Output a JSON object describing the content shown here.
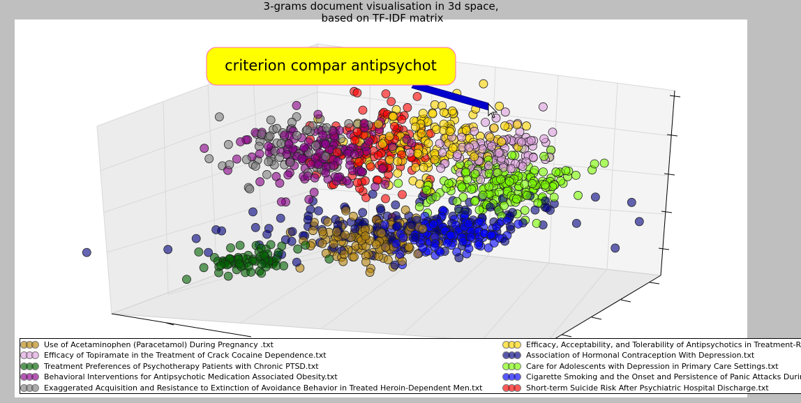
{
  "window": {
    "title_line1": "3-grams document visualisation in 3d space,",
    "title_line2": "based on TF-IDF matrix"
  },
  "annotation": {
    "label": "criterion compar antipsychot",
    "box_color": "#ffff00",
    "arrow_color": "#0000cc"
  },
  "chart_data": {
    "type": "scatter",
    "projection": "3d",
    "title": "3-grams document visualisation in 3d space,\nbased on TF-IDF matrix",
    "xlabel": "",
    "ylabel": "",
    "zlabel": "",
    "x_tick_labels": [],
    "y_tick_labels": [],
    "z_tick_labels": [],
    "xlim": [
      -1,
      1
    ],
    "ylim": [
      -1,
      1
    ],
    "zlim": [
      -1,
      1
    ],
    "grid": true,
    "legend_placement": "bottom",
    "marker": "circle",
    "marker_alpha": 0.6,
    "series": [
      {
        "name": "Use of Acetaminophen (Paracetamol) During Pregnancy .txt",
        "color": "#b8860b",
        "points": 130,
        "center": [
          -0.15,
          -0.55,
          -0.35
        ],
        "spread": [
          0.18,
          0.18,
          0.12
        ]
      },
      {
        "name": "Efficacy of Topiramate in the Treatment of Crack Cocaine Dependence.txt",
        "color": "#dda0dd",
        "points": 110,
        "center": [
          0.62,
          0.2,
          0.25
        ],
        "spread": [
          0.15,
          0.18,
          0.16
        ]
      },
      {
        "name": "Treatment Preferences of Psychotherapy Patients with Chronic PTSD.txt",
        "color": "#006400",
        "points": 70,
        "center": [
          -0.85,
          -0.72,
          -0.4
        ],
        "spread": [
          0.14,
          0.08,
          0.08
        ]
      },
      {
        "name": "Behavioral Interventions for Antipsychotic Medication Associated Obesity.txt",
        "color": "#8b008b",
        "points": 150,
        "center": [
          -0.35,
          0.28,
          0.35
        ],
        "spread": [
          0.2,
          0.18,
          0.2
        ]
      },
      {
        "name": "Exaggerated Acquisition and Resistance to Extinction of Avoidance Behavior in Treated Heroin-Dependent Men.txt",
        "color": "#808080",
        "points": 70,
        "center": [
          -0.48,
          0.35,
          0.4
        ],
        "spread": [
          0.18,
          0.15,
          0.2
        ]
      },
      {
        "name": "Efficacy, Acceptability, and Tolerability of Antipsychotics in Treatment-Resistant Schizophrenia.txt",
        "color": "#ffd700",
        "points": 150,
        "center": [
          0.28,
          0.35,
          0.35
        ],
        "spread": [
          0.2,
          0.2,
          0.25
        ]
      },
      {
        "name": "Association of Hormonal Contraception With Depression.txt",
        "color": "#000080",
        "points": 160,
        "center": [
          0.05,
          -0.45,
          -0.25
        ],
        "spread": [
          0.45,
          0.2,
          0.12
        ]
      },
      {
        "name": "Care for Adolescents with Depression in Primary Care Settings.txt",
        "color": "#7cfc00",
        "points": 190,
        "center": [
          0.62,
          -0.1,
          -0.05
        ],
        "spread": [
          0.18,
          0.22,
          0.14
        ]
      },
      {
        "name": "Cigarette Smoking and the Onset and Persistence of Panic Attacks During Mid-Adulthood in the United States.txt",
        "color": "#0000ff",
        "points": 140,
        "center": [
          0.25,
          -0.62,
          -0.3
        ],
        "spread": [
          0.18,
          0.15,
          0.1
        ]
      },
      {
        "name": "Short-term Suicide Risk After Psychiatric Hospital Discharge.txt",
        "color": "#ff0000",
        "points": 150,
        "center": [
          0.0,
          0.45,
          0.3
        ],
        "spread": [
          0.15,
          0.18,
          0.28
        ]
      }
    ]
  },
  "legend": {
    "entries": [
      {
        "label": "Use of Acetaminophen (Paracetamol) During Pregnancy .txt",
        "color": "#b8860b"
      },
      {
        "label": "Efficacy of Topiramate in the Treatment of Crack Cocaine Dependence.txt",
        "color": "#dda0dd"
      },
      {
        "label": "Treatment Preferences of Psychotherapy Patients with Chronic PTSD.txt",
        "color": "#006400"
      },
      {
        "label": "Behavioral Interventions for Antipsychotic Medication Associated Obesity.txt",
        "color": "#8b008b"
      },
      {
        "label": "Exaggerated Acquisition and Resistance to Extinction of Avoidance Behavior in Treated Heroin-Dependent Men.txt",
        "color": "#808080"
      },
      {
        "label": "Efficacy, Acceptability, and Tolerability of Antipsychotics in Treatment-Resistant Schizophrenia.txt",
        "color": "#ffd700"
      },
      {
        "label": "Association of Hormonal Contraception With Depression.txt",
        "color": "#000080"
      },
      {
        "label": "Care for Adolescents with Depression in Primary Care Settings.txt",
        "color": "#7cfc00"
      },
      {
        "label": "Cigarette Smoking and the Onset and Persistence of Panic Attacks During Mid-Adulthood in the United States.txt",
        "color": "#0000ff"
      },
      {
        "label": "Short-term Suicide Risk After Psychiatric Hospital Discharge.txt",
        "color": "#ff0000"
      }
    ]
  }
}
